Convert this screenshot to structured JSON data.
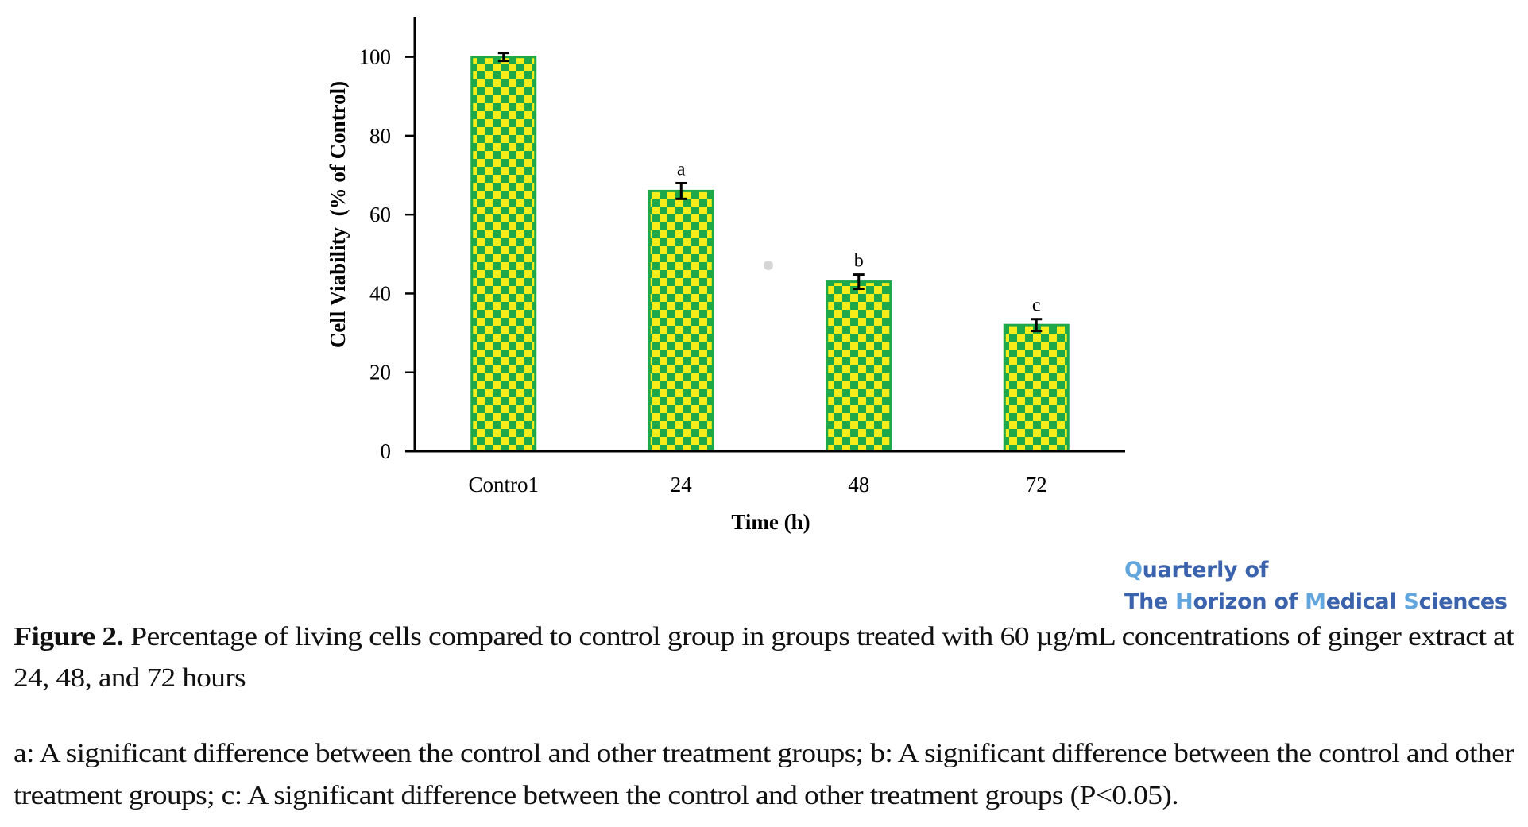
{
  "chart_data": {
    "type": "bar",
    "title": "",
    "xlabel": "Time (h)",
    "ylabel": "Cell Viability  (% of Control)",
    "categories": [
      "Contro1",
      "24",
      "48",
      "72"
    ],
    "values": [
      100,
      66,
      43,
      32
    ],
    "errors": [
      1,
      2,
      1.8,
      1.5
    ],
    "significance_labels": [
      "",
      "a",
      "b",
      "c"
    ],
    "ylim": [
      0,
      110
    ],
    "yticks": [
      0,
      20,
      40,
      60,
      80,
      100
    ],
    "grid": false,
    "legend": "none",
    "bar_pattern_colors": {
      "green": "#1fa84a",
      "yellow": "#f5ec1a"
    }
  },
  "logo": {
    "line1": {
      "hl": "Q",
      "rest": "uarterly of"
    },
    "line2_parts": [
      {
        "text": "The ",
        "hl": false
      },
      {
        "text": "H",
        "hl": true
      },
      {
        "text": "orizon of ",
        "hl": false
      },
      {
        "text": "M",
        "hl": true
      },
      {
        "text": "edical ",
        "hl": false
      },
      {
        "text": "S",
        "hl": true
      },
      {
        "text": "ciences",
        "hl": false
      }
    ],
    "colors": {
      "dark": "#3b62ad",
      "light": "#63a6de"
    }
  },
  "caption": {
    "label": "Figure 2.",
    "line1": " Percentage of living cells compared to control group in groups treated with 60 µg/mL concentrations of ginger extract at",
    "line2": "24, 48, and 72 hours"
  },
  "notes": {
    "line1": "a: A significant difference between the control and other treatment groups; b: A significant difference between the control and other",
    "line2": "treatment groups; c: A significant difference between the control and other treatment groups (P<0.05)."
  }
}
